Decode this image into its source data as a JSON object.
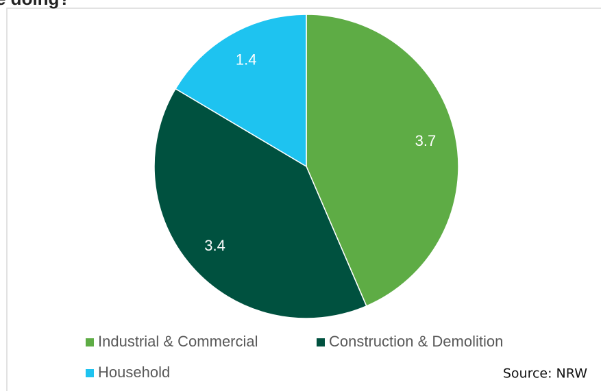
{
  "chart_data": {
    "type": "pie",
    "title": "e doing?",
    "categories": [
      "Industrial & Commercial",
      "Construction & Demolition",
      "Household"
    ],
    "values": [
      3.7,
      3.4,
      1.4
    ],
    "colors": [
      "#5eac45",
      "#00513f",
      "#1ec3f0"
    ],
    "source": "Source: NRW"
  }
}
